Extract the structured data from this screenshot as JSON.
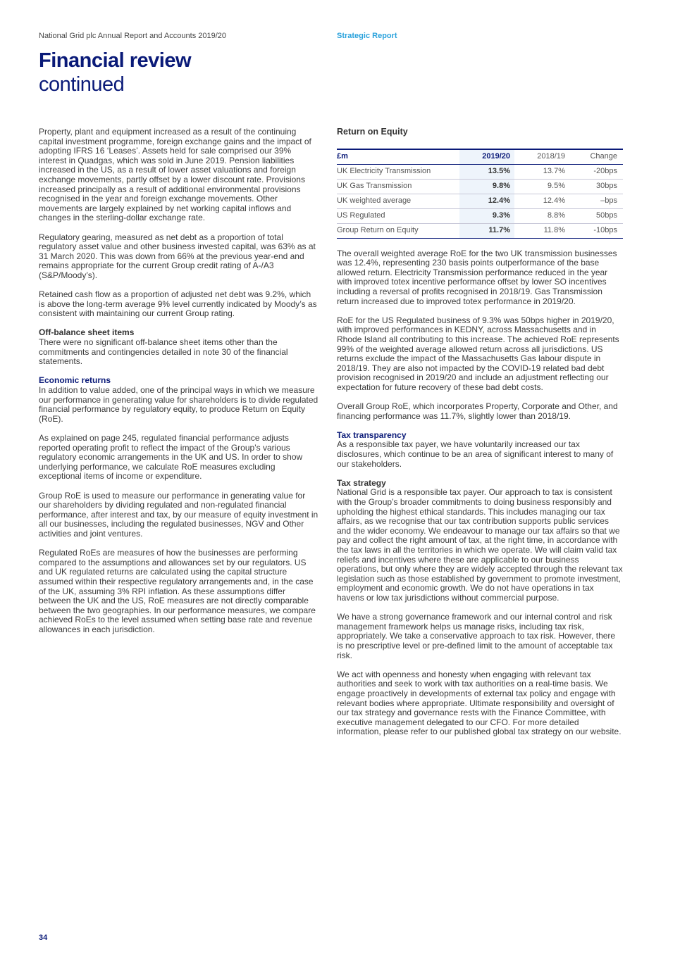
{
  "header": {
    "report_title": "National Grid plc Annual Report and Accounts 2019/20",
    "section": "Strategic Report"
  },
  "page_title": "Financial review",
  "page_subtitle": "continued",
  "left": {
    "p1": "Property, plant and equipment increased as a result of the continuing capital investment programme, foreign exchange gains and the impact of adopting IFRS 16 ‘Leases’. Assets held for sale comprised our 39% interest in Quadgas, which was sold in June 2019. Pension liabilities increased in the US, as a result of lower asset valuations and foreign exchange movements, partly offset by a lower discount rate. Provisions increased principally as a result of additional environmental provisions recognised in the year and foreign exchange movements. Other movements are largely explained by net working capital inflows and changes in the sterling-dollar exchange rate.",
    "p2": "Regulatory gearing, measured as net debt as a proportion of total regulatory asset value and other business invested capital, was 63% as at 31 March 2020. This was down from 66% at the previous year-end and remains appropriate for the current Group credit rating of A-/A3 (S&P/Moody’s).",
    "p3": "Retained cash flow as a proportion of adjusted net debt was 9.2%, which is above the long-term average 9% level currently indicated by Moody’s as consistent with maintaining our current Group rating.",
    "h_offbalance": "Off-balance sheet items",
    "p4": "There were no significant off-balance sheet items other than the commitments and contingencies detailed in note 30 of the financial statements.",
    "h_economic": "Economic returns",
    "p5": "In addition to value added, one of the principal ways in which we measure our performance in generating value for shareholders is to divide regulated financial performance by regulatory equity, to produce Return on Equity (RoE).",
    "p6": "As explained on page 245, regulated financial performance adjusts reported operating profit to reflect the impact of the Group’s various regulatory economic arrangements in the UK and US. In order to show underlying performance, we calculate RoE measures excluding exceptional items of income or expenditure.",
    "p7": "Group RoE is used to measure our performance in generating value for our shareholders by dividing regulated and non-regulated financial performance, after interest and tax, by our measure of equity investment in all our businesses, including the regulated businesses, NGV and Other activities and joint ventures.",
    "p8": "Regulated RoEs are measures of how the businesses are performing compared to the assumptions and allowances set by our regulators. US and UK regulated returns are calculated using the capital structure assumed within their respective regulatory arrangements and, in the case of the UK, assuming 3% RPI inflation. As these assumptions differ between the UK and the US, RoE measures are not directly comparable between the two geographies. In our performance measures, we compare achieved RoEs to the level assumed when setting base rate and revenue allowances in each jurisdiction."
  },
  "roe_table": {
    "title": "Return on Equity",
    "headers": [
      "£m",
      "2019/20",
      "2018/19",
      "Change"
    ],
    "rows": [
      [
        "UK Electricity Transmission",
        "13.5%",
        "13.7%",
        "-20bps"
      ],
      [
        "UK Gas Transmission",
        "9.8%",
        "9.5%",
        "30bps"
      ],
      [
        "UK weighted average",
        "12.4%",
        "12.4%",
        "–bps"
      ],
      [
        "US Regulated",
        "9.3%",
        "8.8%",
        "50bps"
      ],
      [
        "Group Return on Equity",
        "11.7%",
        "11.8%",
        "-10bps"
      ]
    ]
  },
  "right": {
    "p1": "The overall weighted average RoE for the two UK transmission businesses was 12.4%, representing 230 basis points outperformance of the base allowed return. Electricity Transmission performance reduced in the year with improved totex incentive performance offset by lower SO incentives including a reversal of profits recognised in 2018/19. Gas Transmission return increased due to improved totex performance in 2019/20.",
    "p2": "RoE for the US Regulated business of 9.3% was 50bps higher in 2019/20, with improved performances in KEDNY, across Massachusetts and in Rhode Island all contributing to this increase. The achieved RoE represents 99% of the weighted average allowed return across all jurisdictions. US returns exclude the impact of the Massachusetts Gas labour dispute in 2018/19. They are also not impacted by the COVID-19 related bad debt provision recognised in 2019/20 and include an adjustment reflecting our expectation for future recovery of these bad debt costs.",
    "p3": "Overall Group RoE, which incorporates Property, Corporate and Other, and financing performance was 11.7%, slightly lower than 2018/19.",
    "h_tax": "Tax transparency",
    "p4": "As a responsible tax payer, we have voluntarily increased our tax disclosures, which continue to be an area of significant interest to many of our stakeholders.",
    "h_strategy": "Tax strategy",
    "p5": "National Grid is a responsible tax payer. Our approach to tax is consistent with the Group’s broader commitments to doing business responsibly and upholding the highest ethical standards. This includes managing our tax affairs, as we recognise that our tax contribution supports public services and the wider economy. We endeavour to manage our tax affairs so that we pay and collect the right amount of tax, at the right time, in accordance with the tax laws in all the territories in which we operate. We will claim valid tax reliefs and incentives where these are applicable to our business operations, but only where they are widely accepted through the relevant tax legislation such as those established by government to promote investment, employment and economic growth. We do not have operations in tax havens or low tax jurisdictions without commercial purpose.",
    "p6": "We have a strong governance framework and our internal control and risk management framework helps us manage risks, including tax risk, appropriately. We take a conservative approach to tax risk. However, there is no prescriptive level or pre-defined limit to the amount of acceptable tax risk.",
    "p7": "We act with openness and honesty when engaging with relevant tax authorities and seek to work with tax authorities on a real-time basis. We engage proactively in developments of external tax policy and engage with relevant bodies where appropriate. Ultimate responsibility and oversight of our tax strategy and governance rests with the Finance Committee, with executive management delegated to our CFO. For more detailed information, please refer to our published global tax strategy on our website."
  },
  "page_number": "34",
  "colors": {
    "brand_navy": "#0a1a78",
    "accent_blue": "#2aa2dc",
    "highlight_column": "#eef4fb"
  }
}
